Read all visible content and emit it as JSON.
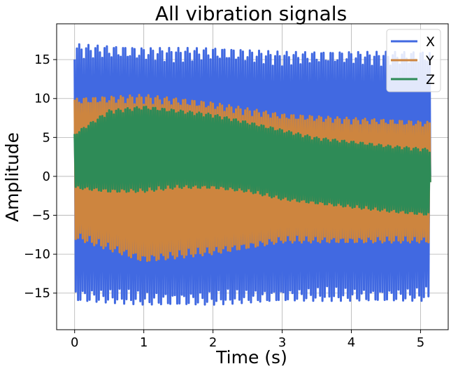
{
  "chart_data": {
    "type": "line",
    "title": "All vibration signals",
    "xlabel": "Time (s)",
    "ylabel": "Amplitude",
    "xlim": [
      -0.26,
      5.4
    ],
    "ylim": [
      -19.7,
      19.6
    ],
    "xticks": [
      0,
      1,
      2,
      3,
      4,
      5
    ],
    "yticks": [
      -15,
      -10,
      -5,
      0,
      5,
      10,
      15
    ],
    "grid": true,
    "legend_position": "top-right",
    "x_range": [
      0,
      5.14
    ],
    "oscillation_frequency_hz": 30,
    "series": [
      {
        "name": "X",
        "color": "#4169e1",
        "envelope_time": [
          0,
          1,
          2,
          3,
          4,
          5.14
        ],
        "upper": [
          17,
          16.5,
          16.5,
          16,
          16,
          16
        ],
        "lower": [
          -16,
          -16.5,
          -16.5,
          -16,
          -16,
          -16
        ]
      },
      {
        "name": "Y",
        "color": "#cd853f",
        "envelope_time": [
          0,
          1,
          2,
          3,
          4,
          5.14
        ],
        "upper": [
          10,
          10.5,
          9.5,
          8,
          7.5,
          7
        ],
        "lower": [
          -8,
          -11,
          -10,
          -8.5,
          -8.5,
          -8.5
        ]
      },
      {
        "name": "Z",
        "color": "#2e8b57",
        "envelope_time": [
          0,
          0.5,
          1,
          1.5,
          2,
          2.5,
          3,
          3.5,
          4,
          4.5,
          5.14
        ],
        "upper": [
          5.5,
          8.5,
          9,
          8.5,
          8,
          7,
          6,
          5,
          4.5,
          4,
          3.5
        ],
        "lower": [
          -1.5,
          -2,
          -2,
          -1.5,
          -1.5,
          -2,
          -3,
          -3.5,
          -4,
          -4.5,
          -5
        ]
      }
    ]
  }
}
